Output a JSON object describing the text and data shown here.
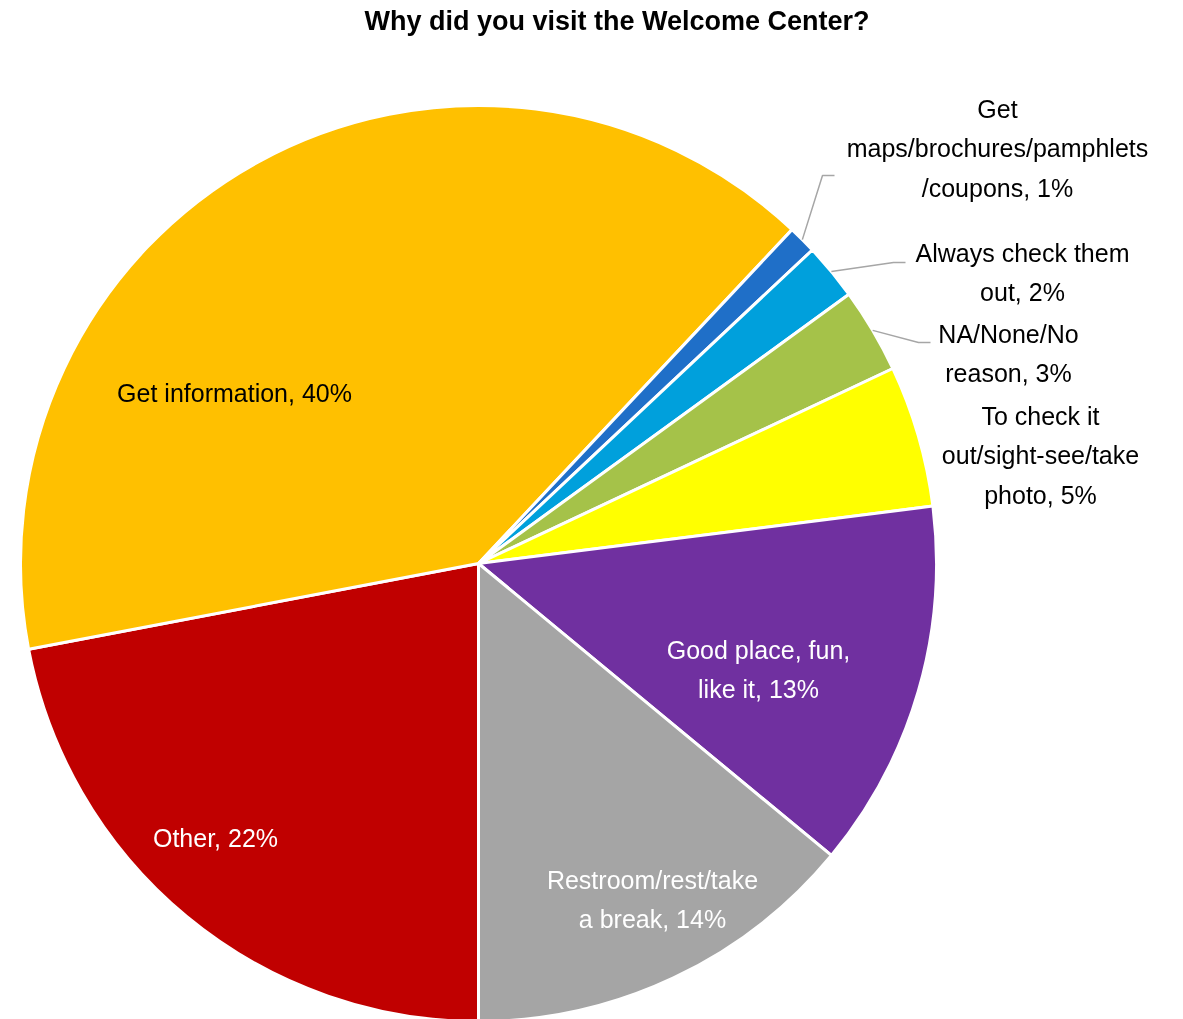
{
  "chart_data": {
    "type": "pie",
    "title": "Why did you visit the Welcome Center?",
    "categories": [
      "Other",
      "Get information",
      "Get maps/brochures/pamphlets/coupons",
      "Always check them out",
      "NA/None/No reason",
      "To check it out/sight-see/take photo",
      "Good place, fun, like it",
      "Restroom/rest/take a break"
    ],
    "values": [
      22,
      40,
      1,
      2,
      3,
      5,
      13,
      14
    ],
    "colors": [
      "#c00000",
      "#ffc000",
      "#1f6fc8",
      "#00a0dc",
      "#a5c249",
      "#ffff00",
      "#7030a0",
      "#a5a5a5"
    ],
    "value_labels": [
      "22%",
      "40%",
      "1%",
      "2%",
      "3%",
      "5%",
      "13%",
      "14%"
    ]
  }
}
